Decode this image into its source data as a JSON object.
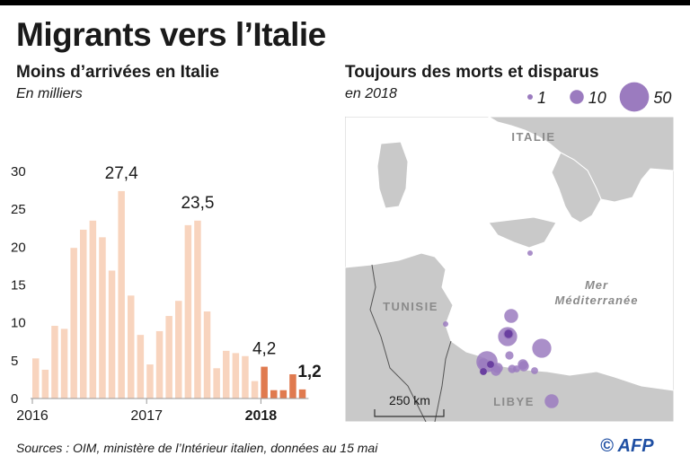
{
  "header": {
    "title": "Migrants vers l’Italie"
  },
  "left_panel": {
    "title": "Moins d’arrivées en Italie",
    "unit": "En milliers"
  },
  "right_panel": {
    "title": "Toujours des morts et disparus",
    "year": "en 2018",
    "legend": {
      "sizes": [
        {
          "value": 1,
          "label": "1"
        },
        {
          "value": 10,
          "label": "10"
        },
        {
          "value": 50,
          "label": "50"
        }
      ],
      "color": "#9b7bbf"
    },
    "map_labels": {
      "italie": "ITALIE",
      "tunisie": "TUNISIE",
      "libye": "LIBYE",
      "mer": [
        "Mer",
        "Méditerranée"
      ],
      "scale": "250 km"
    },
    "colors": {
      "land": "#c9c9c9",
      "sea": "#ffffff",
      "border": "#555555",
      "marker": "#9b7bbf",
      "marker_dark": "#6a3fa0"
    },
    "markers": [
      {
        "size": 1,
        "lat": "Sicily",
        "lon": ""
      },
      {
        "size": 1
      },
      {
        "size": 10
      },
      {
        "size": 20
      },
      {
        "size": 25
      },
      {
        "size": 5
      },
      {
        "size": 5
      },
      {
        "size": 5
      },
      {
        "size": 30
      },
      {
        "size": 5
      },
      {
        "size": 3
      },
      {
        "size": 2
      },
      {
        "size": 5
      },
      {
        "size": 2
      },
      {
        "size": 10
      }
    ]
  },
  "footer": {
    "sources": "Sources : OIM, ministère de l’Intérieur italien, données au 15 mai",
    "credit": "© AFP"
  },
  "chart_data": {
    "type": "bar",
    "title": "Moins d’arrivées en Italie",
    "unit": "En milliers",
    "ylim": [
      0,
      30
    ],
    "y_ticks": [
      0,
      5,
      10,
      15,
      20,
      25,
      30
    ],
    "x_tick_labels": [
      {
        "label": "2016",
        "index": 0,
        "bold": false
      },
      {
        "label": "2017",
        "index": 12,
        "bold": false
      },
      {
        "label": "2018",
        "index": 24,
        "bold": true
      }
    ],
    "grid": false,
    "colors": {
      "past": "#f8d4be",
      "current": "#e07a4f"
    },
    "series": [
      {
        "values": [
          5.3,
          3.8,
          9.6,
          9.2,
          19.9,
          22.3,
          23.5,
          21.3,
          16.9,
          27.4,
          13.6,
          8.4,
          4.5,
          8.9,
          10.9,
          12.9,
          22.9,
          23.5,
          11.5,
          4.0,
          6.3,
          6.0,
          5.6,
          2.3,
          4.2,
          1.1,
          1.1,
          3.2,
          1.2
        ],
        "year_of_bar": [
          "2016",
          "2016",
          "2016",
          "2016",
          "2016",
          "2016",
          "2016",
          "2016",
          "2016",
          "2016",
          "2016",
          "2016",
          "2017",
          "2017",
          "2017",
          "2017",
          "2017",
          "2017",
          "2017",
          "2017",
          "2017",
          "2017",
          "2017",
          "2017",
          "2018",
          "2018",
          "2018",
          "2018",
          "2018"
        ]
      }
    ],
    "annotations": [
      {
        "index": 9,
        "label": "27,4",
        "bold": false
      },
      {
        "index": 17,
        "label": "23,5",
        "bold": false
      },
      {
        "index": 24,
        "label": "4,2",
        "bold": false
      },
      {
        "index": 28,
        "label": "1,2",
        "bold": true
      }
    ]
  }
}
